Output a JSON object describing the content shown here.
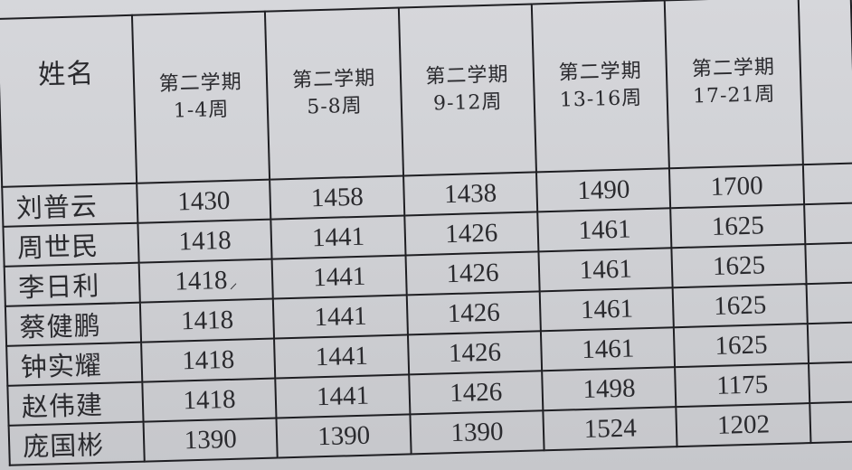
{
  "table": {
    "name_header": "姓名",
    "columns": [
      {
        "line1": "第二学期",
        "line2": "1-4周"
      },
      {
        "line1": "第二学期",
        "line2": "5-8周"
      },
      {
        "line1": "第二学期",
        "line2": "9-12周"
      },
      {
        "line1": "第二学期",
        "line2": "13-16周"
      },
      {
        "line1": "第二学期",
        "line2": "17-21周"
      }
    ],
    "rows": [
      {
        "name": "刘普云",
        "values": [
          "1430",
          "1458",
          "1438",
          "1490",
          "1700"
        ]
      },
      {
        "name": "周世民",
        "values": [
          "1418",
          "1441",
          "1426",
          "1461",
          "1625"
        ]
      },
      {
        "name": "李日利",
        "values": [
          "1418",
          "1441",
          "1426",
          "1461",
          "1625"
        ]
      },
      {
        "name": "蔡健鹏",
        "values": [
          "1418",
          "1441",
          "1426",
          "1461",
          "1625"
        ]
      },
      {
        "name": "钟实耀",
        "values": [
          "1418",
          "1441",
          "1426",
          "1461",
          "1625"
        ]
      },
      {
        "name": "赵伟建",
        "values": [
          "1418",
          "1441",
          "1426",
          "1498",
          "1175"
        ]
      },
      {
        "name": "庞国彬",
        "values": [
          "1390",
          "1390",
          "1390",
          "1524",
          "1202"
        ]
      }
    ]
  }
}
